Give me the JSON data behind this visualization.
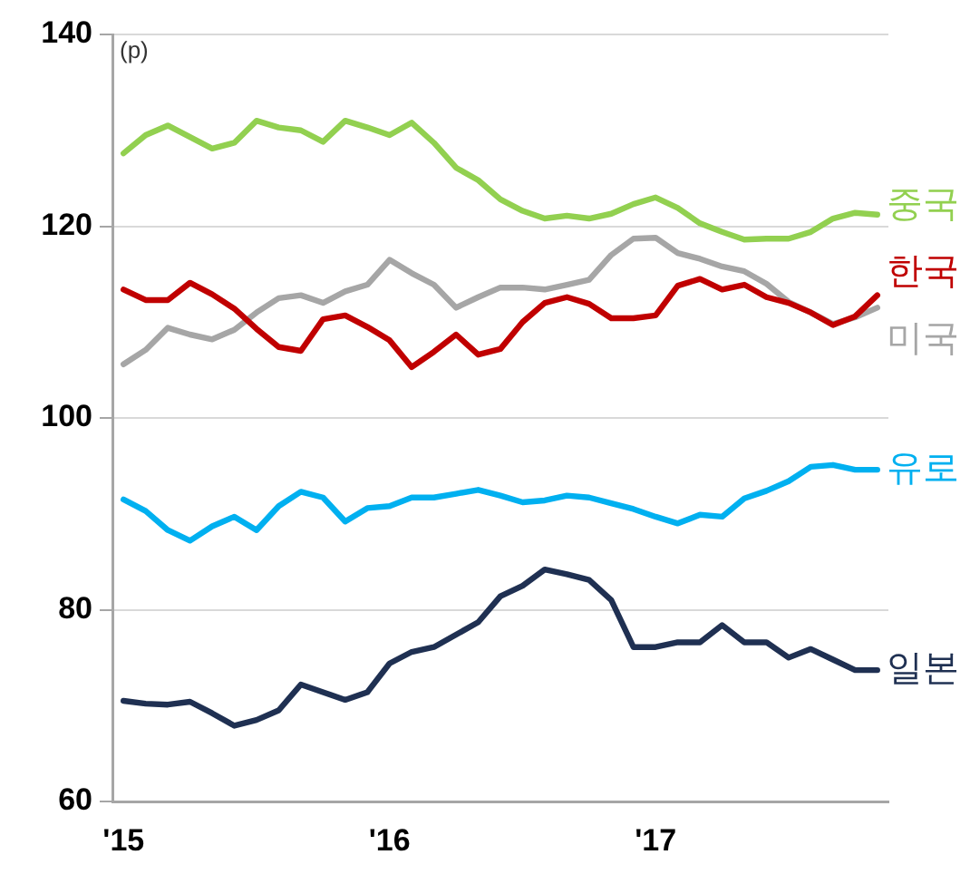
{
  "chart_data": {
    "type": "line",
    "ylabel": "(p)",
    "categories": [
      "'15",
      null,
      null,
      null,
      null,
      null,
      null,
      null,
      null,
      null,
      null,
      null,
      "'16",
      null,
      null,
      null,
      null,
      null,
      null,
      null,
      null,
      null,
      null,
      null,
      "'17",
      null,
      null,
      null,
      null,
      null,
      null,
      null,
      null,
      null,
      null
    ],
    "ylim": [
      60,
      140
    ],
    "yticks": [
      60,
      80,
      100,
      120,
      140
    ],
    "grid": "y",
    "line_style": "solid",
    "series": [
      {
        "name": "중국",
        "color": "#92d050",
        "values": [
          127.6,
          129.5,
          130.5,
          129.3,
          128.1,
          128.7,
          131.0,
          130.3,
          130.0,
          128.8,
          131.0,
          130.3,
          129.5,
          130.8,
          128.7,
          126.1,
          124.8,
          122.8,
          121.6,
          120.8,
          121.1,
          120.8,
          121.3,
          122.3,
          123.0,
          121.9,
          120.3,
          119.4,
          118.6,
          118.7,
          118.7,
          119.4,
          120.8,
          121.4,
          121.2
        ]
      },
      {
        "name": "한국",
        "color": "#c00000",
        "values": [
          113.4,
          112.3,
          112.3,
          114.1,
          112.9,
          111.4,
          109.3,
          107.4,
          107.0,
          110.3,
          110.7,
          109.5,
          108.1,
          105.3,
          106.9,
          108.7,
          106.6,
          107.2,
          110.0,
          112.0,
          112.6,
          111.9,
          110.4,
          110.4,
          110.7,
          113.8,
          114.5,
          113.4,
          113.9,
          112.6,
          112.0,
          111.0,
          109.7,
          110.6,
          112.8
        ]
      },
      {
        "name": "미국",
        "color": "#a6a6a6",
        "values": [
          105.6,
          107.1,
          109.4,
          108.7,
          108.2,
          109.2,
          111.0,
          112.5,
          112.8,
          112.0,
          113.2,
          113.9,
          116.5,
          115.1,
          113.9,
          111.5,
          112.6,
          113.6,
          113.6,
          113.4,
          113.9,
          114.4,
          117.0,
          118.7,
          118.8,
          117.2,
          116.6,
          115.8,
          115.3,
          114.0,
          112.1,
          111.0,
          109.8,
          110.5,
          111.5
        ]
      },
      {
        "name": "유로",
        "color": "#00b0f0",
        "values": [
          91.5,
          90.3,
          88.3,
          87.2,
          88.7,
          89.7,
          88.3,
          90.8,
          92.3,
          91.7,
          89.2,
          90.6,
          90.8,
          91.7,
          91.7,
          92.1,
          92.5,
          91.9,
          91.2,
          91.4,
          91.9,
          91.7,
          91.1,
          90.5,
          89.7,
          89.0,
          89.9,
          89.7,
          91.6,
          92.4,
          93.4,
          94.9,
          95.1,
          94.6,
          94.6
        ]
      },
      {
        "name": "일본",
        "color": "#1f3052",
        "values": [
          70.5,
          70.2,
          70.1,
          70.4,
          69.2,
          67.9,
          68.5,
          69.5,
          72.2,
          71.4,
          70.6,
          71.4,
          74.4,
          75.6,
          76.1,
          77.4,
          78.7,
          81.4,
          82.5,
          84.2,
          83.7,
          83.1,
          81.0,
          76.1,
          76.1,
          76.6,
          76.6,
          78.4,
          76.6,
          76.6,
          75.0,
          75.9,
          74.8,
          73.7,
          73.7
        ]
      }
    ]
  }
}
